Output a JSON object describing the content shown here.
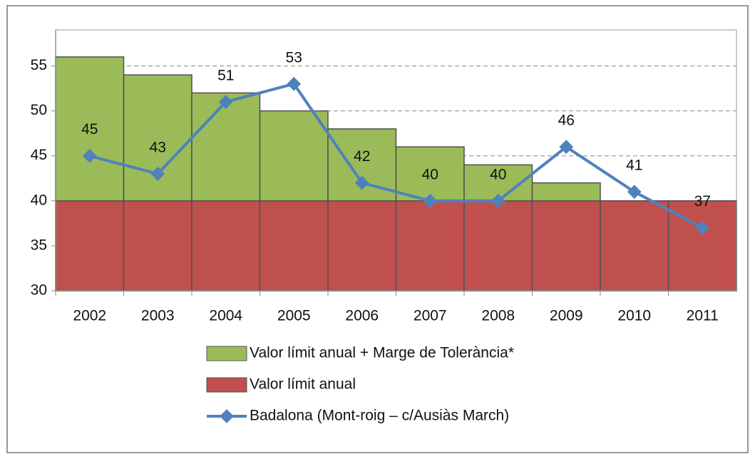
{
  "chart_data": {
    "type": "combo",
    "categories": [
      "2002",
      "2003",
      "2004",
      "2005",
      "2006",
      "2007",
      "2008",
      "2009",
      "2010",
      "2011"
    ],
    "series": [
      {
        "name": "Valor límit anual + Marge de Tolerància*",
        "type": "bar",
        "color": "#9bbb59",
        "values": [
          56,
          54,
          52,
          50,
          48,
          46,
          44,
          42,
          40,
          40
        ]
      },
      {
        "name": "Valor límit anual",
        "type": "bar",
        "color": "#c0504d",
        "values": [
          40,
          40,
          40,
          40,
          40,
          40,
          40,
          40,
          40,
          40
        ]
      },
      {
        "name": "Badalona (Mont-roig – c/Ausiàs March)",
        "type": "line",
        "color": "#4f81bd",
        "values": [
          45,
          43,
          51,
          53,
          42,
          40,
          40,
          46,
          41,
          37
        ]
      }
    ],
    "ylim": [
      30,
      59
    ],
    "yticks": [
      30,
      35,
      40,
      45,
      50,
      55
    ],
    "grid": true,
    "legend": "bottom"
  }
}
